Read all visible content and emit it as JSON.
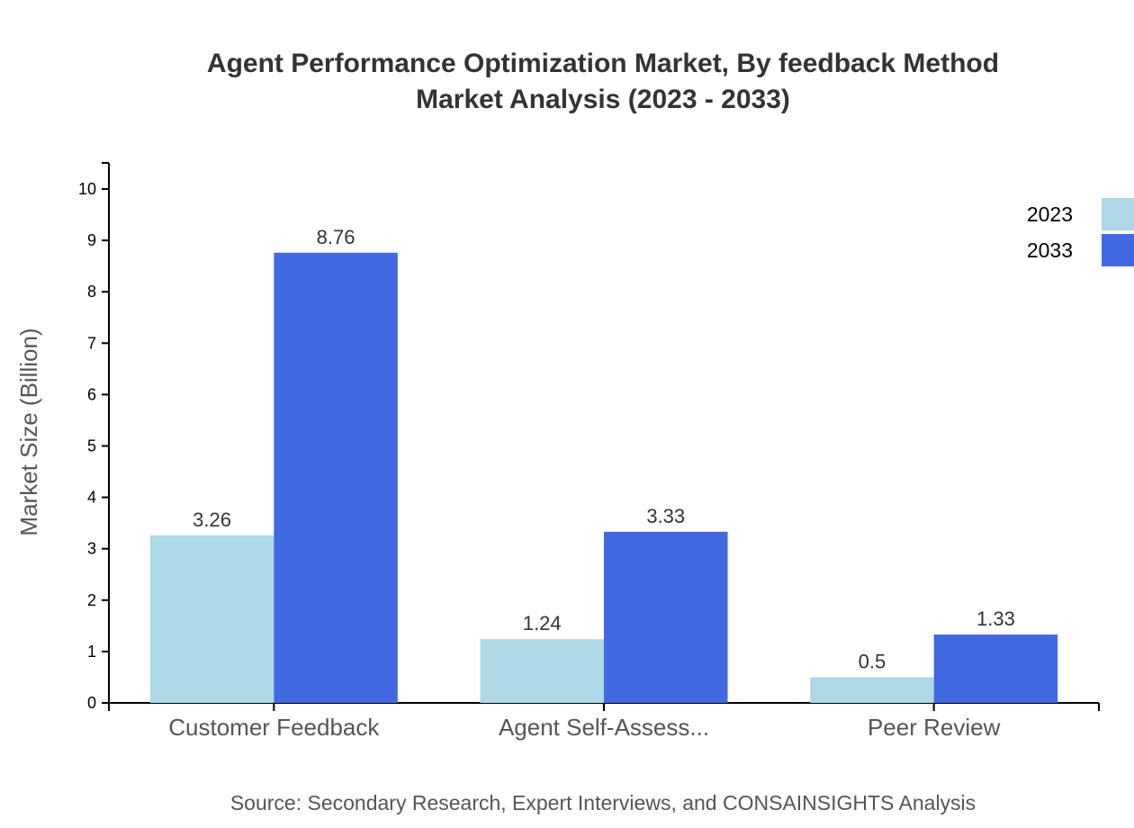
{
  "chart_data": {
    "type": "bar",
    "title": "Agent Performance Optimization Market, By feedback Method",
    "subtitle": "Market Analysis (2023 - 2033)",
    "xlabel": "",
    "ylabel": "Market Size (Billion)",
    "ylim": [
      0,
      10.5
    ],
    "yticks": [
      0,
      1,
      2,
      3,
      4,
      5,
      6,
      7,
      8,
      9,
      10
    ],
    "categories": [
      "Customer Feedback",
      "Agent Self-Assess...",
      "Peer Review"
    ],
    "series": [
      {
        "name": "2023",
        "values": [
          3.26,
          1.24,
          0.5
        ],
        "color": "#add8e6"
      },
      {
        "name": "2033",
        "values": [
          8.76,
          3.33,
          1.33
        ],
        "color": "#4169e1"
      }
    ],
    "legend": "top-right",
    "grid": false,
    "source": "Source: Secondary Research, Expert Interviews, and CONSAINSIGHTS Analysis"
  }
}
